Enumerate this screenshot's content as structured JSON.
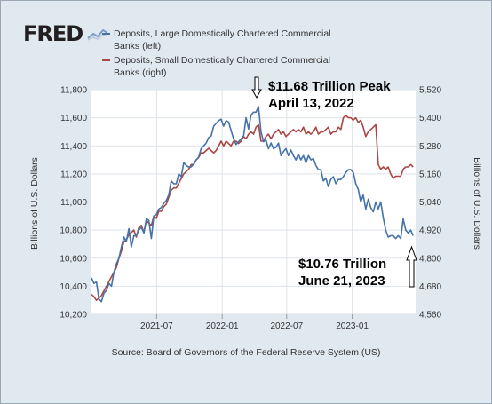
{
  "brand": "FRED",
  "logo_icon": "fred-line-chart-icon",
  "colors": {
    "series_left": "#4572a7",
    "series_right": "#aa4643",
    "frame": "#e1e9f0",
    "plot": "#ffffff",
    "grid": "#dde3ea"
  },
  "legend": [
    {
      "line1": "Deposits, Large Domestically Chartered Commercial",
      "line2": "Banks (left)"
    },
    {
      "line1": "Deposits, Small Domestically Chartered Commercial",
      "line2": "Banks (right)"
    }
  ],
  "annotations": {
    "peak_line1": "$11.68 Trillion Peak",
    "peak_line2": "April 13, 2022",
    "latest_line1": "$10.76 Trillion",
    "latest_line2": "June 21, 2023"
  },
  "source": "Source: Board of Governors of the Federal Reserve System (US)",
  "chart_data": {
    "type": "line",
    "ylabel_left": "Billions of U.S. Dollars",
    "ylabel_right": "Billions of U.S. Dollars",
    "xlim": [
      "2020-12-30",
      "2023-06-28"
    ],
    "ylim_left": [
      10200,
      11800
    ],
    "ylim_right": [
      4560,
      5520
    ],
    "left_ticks": [
      "10,200",
      "10,400",
      "10,600",
      "10,800",
      "11,000",
      "11,200",
      "11,400",
      "11,600",
      "11,800"
    ],
    "right_ticks": [
      "4,560",
      "4,680",
      "4,800",
      "4,920",
      "5,040",
      "5,160",
      "5,280",
      "5,400",
      "5,520"
    ],
    "x_ticks": [
      {
        "label": "2021-07",
        "date": "2021-07-01"
      },
      {
        "label": "2022-01",
        "date": "2022-01-01"
      },
      {
        "label": "2022-07",
        "date": "2022-07-01"
      },
      {
        "label": "2023-01",
        "date": "2023-01-01"
      }
    ],
    "grid": true,
    "legend_position": "top",
    "series": [
      {
        "name": "Deposits, Large Domestically Chartered Commercial Banks (left)",
        "axis": "left",
        "points": [
          [
            "2020-12-30",
            10460
          ],
          [
            "2021-01-06",
            10420
          ],
          [
            "2021-01-13",
            10430
          ],
          [
            "2021-01-20",
            10310
          ],
          [
            "2021-01-27",
            10290
          ],
          [
            "2021-02-03",
            10350
          ],
          [
            "2021-02-10",
            10370
          ],
          [
            "2021-02-17",
            10420
          ],
          [
            "2021-02-24",
            10400
          ],
          [
            "2021-03-03",
            10500
          ],
          [
            "2021-03-10",
            10560
          ],
          [
            "2021-03-17",
            10600
          ],
          [
            "2021-03-24",
            10680
          ],
          [
            "2021-03-31",
            10750
          ],
          [
            "2021-04-07",
            10720
          ],
          [
            "2021-04-14",
            10810
          ],
          [
            "2021-04-21",
            10680
          ],
          [
            "2021-04-28",
            10760
          ],
          [
            "2021-05-05",
            10760
          ],
          [
            "2021-05-12",
            10800
          ],
          [
            "2021-05-19",
            10820
          ],
          [
            "2021-05-26",
            10780
          ],
          [
            "2021-06-02",
            10880
          ],
          [
            "2021-06-09",
            10870
          ],
          [
            "2021-06-16",
            10740
          ],
          [
            "2021-06-23",
            10900
          ],
          [
            "2021-06-30",
            10910
          ],
          [
            "2021-07-07",
            10950
          ],
          [
            "2021-07-14",
            10960
          ],
          [
            "2021-07-21",
            10990
          ],
          [
            "2021-07-28",
            11010
          ],
          [
            "2021-08-04",
            11050
          ],
          [
            "2021-08-11",
            11150
          ],
          [
            "2021-08-18",
            11130
          ],
          [
            "2021-08-25",
            11130
          ],
          [
            "2021-09-01",
            11200
          ],
          [
            "2021-09-08",
            11180
          ],
          [
            "2021-09-15",
            11280
          ],
          [
            "2021-09-22",
            11260
          ],
          [
            "2021-09-29",
            11250
          ],
          [
            "2021-10-06",
            11250
          ],
          [
            "2021-10-13",
            11270
          ],
          [
            "2021-10-20",
            11300
          ],
          [
            "2021-10-27",
            11320
          ],
          [
            "2021-11-03",
            11380
          ],
          [
            "2021-11-10",
            11400
          ],
          [
            "2021-11-17",
            11420
          ],
          [
            "2021-11-24",
            11460
          ],
          [
            "2021-12-01",
            11470
          ],
          [
            "2021-12-08",
            11540
          ],
          [
            "2021-12-15",
            11560
          ],
          [
            "2021-12-22",
            11580
          ],
          [
            "2021-12-29",
            11590
          ],
          [
            "2022-01-05",
            11540
          ],
          [
            "2022-01-12",
            11580
          ],
          [
            "2022-01-19",
            11570
          ],
          [
            "2022-01-26",
            11510
          ],
          [
            "2022-02-02",
            11450
          ],
          [
            "2022-02-09",
            11410
          ],
          [
            "2022-02-16",
            11430
          ],
          [
            "2022-02-23",
            11450
          ],
          [
            "2022-03-02",
            11470
          ],
          [
            "2022-03-09",
            11600
          ],
          [
            "2022-03-16",
            11520
          ],
          [
            "2022-03-23",
            11620
          ],
          [
            "2022-03-30",
            11640
          ],
          [
            "2022-04-06",
            11640
          ],
          [
            "2022-04-13",
            11680
          ],
          [
            "2022-04-20",
            11500
          ],
          [
            "2022-04-27",
            11430
          ],
          [
            "2022-05-04",
            11440
          ],
          [
            "2022-05-11",
            11380
          ],
          [
            "2022-05-18",
            11420
          ],
          [
            "2022-05-25",
            11380
          ],
          [
            "2022-06-01",
            11390
          ],
          [
            "2022-06-08",
            11420
          ],
          [
            "2022-06-15",
            11330
          ],
          [
            "2022-06-22",
            11360
          ],
          [
            "2022-06-29",
            11380
          ],
          [
            "2022-07-06",
            11330
          ],
          [
            "2022-07-13",
            11370
          ],
          [
            "2022-07-20",
            11330
          ],
          [
            "2022-07-27",
            11300
          ],
          [
            "2022-08-03",
            11340
          ],
          [
            "2022-08-10",
            11300
          ],
          [
            "2022-08-17",
            11330
          ],
          [
            "2022-08-24",
            11280
          ],
          [
            "2022-08-31",
            11330
          ],
          [
            "2022-09-07",
            11300
          ],
          [
            "2022-09-14",
            11310
          ],
          [
            "2022-09-21",
            11260
          ],
          [
            "2022-09-28",
            11230
          ],
          [
            "2022-10-05",
            11230
          ],
          [
            "2022-10-12",
            11150
          ],
          [
            "2022-10-19",
            11170
          ],
          [
            "2022-10-26",
            11110
          ],
          [
            "2022-11-02",
            11160
          ],
          [
            "2022-11-09",
            11180
          ],
          [
            "2022-11-16",
            11130
          ],
          [
            "2022-11-23",
            11160
          ],
          [
            "2022-11-30",
            11160
          ],
          [
            "2022-12-07",
            11180
          ],
          [
            "2022-12-14",
            11210
          ],
          [
            "2022-12-21",
            11230
          ],
          [
            "2022-12-28",
            11230
          ],
          [
            "2023-01-04",
            11210
          ],
          [
            "2023-01-11",
            11130
          ],
          [
            "2023-01-18",
            11090
          ],
          [
            "2023-01-25",
            11000
          ],
          [
            "2023-02-01",
            11050
          ],
          [
            "2023-02-08",
            10950
          ],
          [
            "2023-02-15",
            11020
          ],
          [
            "2023-02-22",
            10960
          ],
          [
            "2023-03-01",
            10930
          ],
          [
            "2023-03-08",
            11000
          ],
          [
            "2023-03-15",
            10950
          ],
          [
            "2023-03-22",
            11000
          ],
          [
            "2023-03-29",
            10890
          ],
          [
            "2023-04-05",
            10800
          ],
          [
            "2023-04-12",
            10750
          ],
          [
            "2023-04-19",
            10760
          ],
          [
            "2023-04-26",
            10760
          ],
          [
            "2023-05-03",
            10740
          ],
          [
            "2023-05-10",
            10760
          ],
          [
            "2023-05-17",
            10740
          ],
          [
            "2023-05-24",
            10880
          ],
          [
            "2023-05-31",
            10800
          ],
          [
            "2023-06-07",
            10780
          ],
          [
            "2023-06-14",
            10800
          ],
          [
            "2023-06-21",
            10760
          ]
        ]
      },
      {
        "name": "Deposits, Small Domestically Chartered Commercial Banks (right)",
        "axis": "right",
        "points": [
          [
            "2020-12-30",
            4645
          ],
          [
            "2021-01-06",
            4635
          ],
          [
            "2021-01-13",
            4620
          ],
          [
            "2021-01-20",
            4630
          ],
          [
            "2021-01-27",
            4640
          ],
          [
            "2021-02-03",
            4660
          ],
          [
            "2021-02-10",
            4680
          ],
          [
            "2021-02-17",
            4700
          ],
          [
            "2021-02-24",
            4720
          ],
          [
            "2021-03-03",
            4740
          ],
          [
            "2021-03-10",
            4760
          ],
          [
            "2021-03-17",
            4800
          ],
          [
            "2021-03-24",
            4830
          ],
          [
            "2021-03-31",
            4870
          ],
          [
            "2021-04-07",
            4880
          ],
          [
            "2021-04-14",
            4900
          ],
          [
            "2021-04-21",
            4910
          ],
          [
            "2021-04-28",
            4920
          ],
          [
            "2021-05-05",
            4890
          ],
          [
            "2021-05-12",
            4930
          ],
          [
            "2021-05-19",
            4940
          ],
          [
            "2021-05-26",
            4910
          ],
          [
            "2021-06-02",
            4960
          ],
          [
            "2021-06-09",
            4950
          ],
          [
            "2021-06-16",
            4940
          ],
          [
            "2021-06-23",
            4980
          ],
          [
            "2021-06-30",
            4970
          ],
          [
            "2021-07-07",
            5000
          ],
          [
            "2021-07-14",
            5000
          ],
          [
            "2021-07-21",
            5020
          ],
          [
            "2021-07-28",
            5030
          ],
          [
            "2021-08-04",
            5060
          ],
          [
            "2021-08-11",
            5090
          ],
          [
            "2021-08-18",
            5100
          ],
          [
            "2021-08-25",
            5100
          ],
          [
            "2021-09-01",
            5120
          ],
          [
            "2021-09-08",
            5140
          ],
          [
            "2021-09-15",
            5160
          ],
          [
            "2021-09-22",
            5170
          ],
          [
            "2021-09-29",
            5180
          ],
          [
            "2021-10-06",
            5200
          ],
          [
            "2021-10-13",
            5200
          ],
          [
            "2021-10-20",
            5220
          ],
          [
            "2021-10-27",
            5230
          ],
          [
            "2021-11-03",
            5250
          ],
          [
            "2021-11-10",
            5250
          ],
          [
            "2021-11-17",
            5260
          ],
          [
            "2021-11-24",
            5270
          ],
          [
            "2021-12-01",
            5260
          ],
          [
            "2021-12-08",
            5250
          ],
          [
            "2021-12-15",
            5260
          ],
          [
            "2021-12-22",
            5280
          ],
          [
            "2021-12-29",
            5300
          ],
          [
            "2022-01-05",
            5280
          ],
          [
            "2022-01-12",
            5300
          ],
          [
            "2022-01-19",
            5290
          ],
          [
            "2022-01-26",
            5280
          ],
          [
            "2022-02-02",
            5300
          ],
          [
            "2022-02-09",
            5300
          ],
          [
            "2022-02-16",
            5290
          ],
          [
            "2022-02-23",
            5300
          ],
          [
            "2022-03-02",
            5320
          ],
          [
            "2022-03-09",
            5310
          ],
          [
            "2022-03-16",
            5330
          ],
          [
            "2022-03-23",
            5340
          ],
          [
            "2022-03-30",
            5330
          ],
          [
            "2022-04-06",
            5360
          ],
          [
            "2022-04-13",
            5370
          ],
          [
            "2022-04-20",
            5300
          ],
          [
            "2022-04-27",
            5300
          ],
          [
            "2022-05-04",
            5320
          ],
          [
            "2022-05-11",
            5330
          ],
          [
            "2022-05-18",
            5310
          ],
          [
            "2022-05-25",
            5330
          ],
          [
            "2022-06-01",
            5340
          ],
          [
            "2022-06-08",
            5350
          ],
          [
            "2022-06-15",
            5330
          ],
          [
            "2022-06-22",
            5340
          ],
          [
            "2022-06-29",
            5320
          ],
          [
            "2022-07-06",
            5330
          ],
          [
            "2022-07-13",
            5340
          ],
          [
            "2022-07-20",
            5350
          ],
          [
            "2022-07-27",
            5340
          ],
          [
            "2022-08-03",
            5350
          ],
          [
            "2022-08-10",
            5340
          ],
          [
            "2022-08-17",
            5360
          ],
          [
            "2022-08-24",
            5330
          ],
          [
            "2022-08-31",
            5340
          ],
          [
            "2022-09-07",
            5330
          ],
          [
            "2022-09-14",
            5340
          ],
          [
            "2022-09-21",
            5360
          ],
          [
            "2022-09-28",
            5330
          ],
          [
            "2022-10-05",
            5340
          ],
          [
            "2022-10-12",
            5340
          ],
          [
            "2022-10-19",
            5350
          ],
          [
            "2022-10-26",
            5360
          ],
          [
            "2022-11-02",
            5330
          ],
          [
            "2022-11-09",
            5340
          ],
          [
            "2022-11-16",
            5340
          ],
          [
            "2022-11-23",
            5360
          ],
          [
            "2022-11-30",
            5350
          ],
          [
            "2022-12-07",
            5400
          ],
          [
            "2022-12-14",
            5410
          ],
          [
            "2022-12-21",
            5400
          ],
          [
            "2022-12-28",
            5400
          ],
          [
            "2023-01-04",
            5390
          ],
          [
            "2023-01-11",
            5400
          ],
          [
            "2023-01-18",
            5380
          ],
          [
            "2023-01-25",
            5390
          ],
          [
            "2023-02-01",
            5360
          ],
          [
            "2023-02-08",
            5320
          ],
          [
            "2023-02-15",
            5340
          ],
          [
            "2023-02-22",
            5350
          ],
          [
            "2023-03-01",
            5360
          ],
          [
            "2023-03-08",
            5370
          ],
          [
            "2023-03-15",
            5200
          ],
          [
            "2023-03-22",
            5180
          ],
          [
            "2023-03-29",
            5190
          ],
          [
            "2023-04-05",
            5180
          ],
          [
            "2023-04-12",
            5190
          ],
          [
            "2023-04-19",
            5160
          ],
          [
            "2023-04-26",
            5140
          ],
          [
            "2023-05-03",
            5150
          ],
          [
            "2023-05-10",
            5150
          ],
          [
            "2023-05-17",
            5150
          ],
          [
            "2023-05-24",
            5180
          ],
          [
            "2023-05-31",
            5190
          ],
          [
            "2023-06-07",
            5190
          ],
          [
            "2023-06-14",
            5200
          ],
          [
            "2023-06-21",
            5190
          ]
        ]
      }
    ]
  }
}
